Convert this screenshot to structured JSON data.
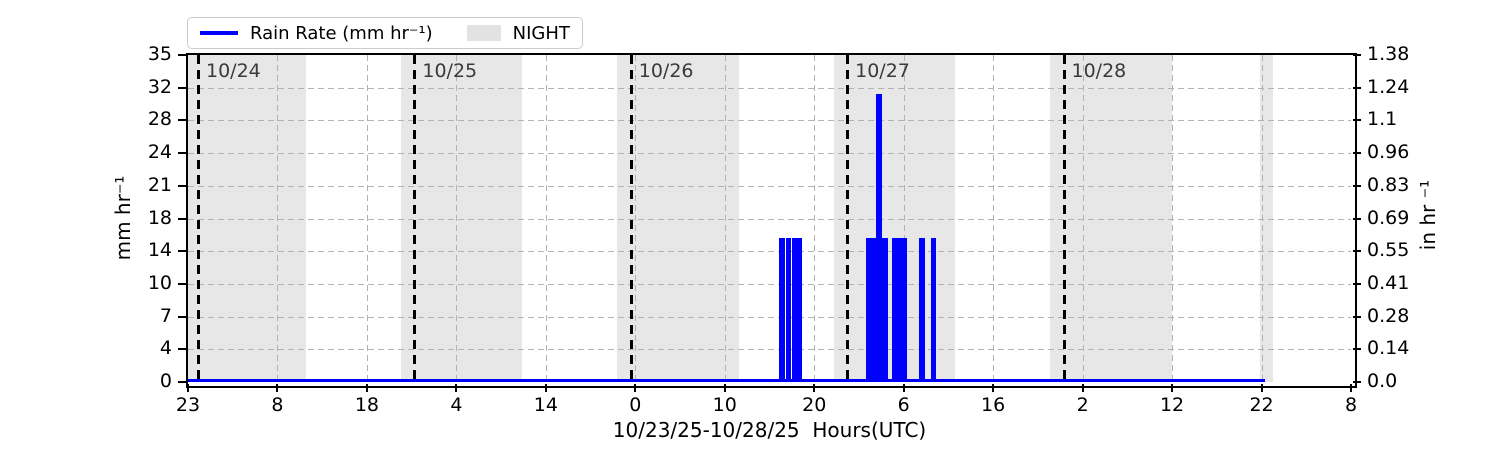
{
  "chart_data": {
    "type": "bar",
    "title": "",
    "xlabel": "10/23/25-10/28/25  Hours(UTC)",
    "ylabel_left": "mm hr⁻¹",
    "ylabel_right": "in hr ⁻¹",
    "x_axis": {
      "description": "hours since 10/23/25 23:00 UTC",
      "range_hours": [
        0,
        129
      ],
      "tick_labels": [
        "23",
        "8",
        "18",
        "4",
        "14",
        "0",
        "10",
        "20",
        "6",
        "16",
        "2",
        "12",
        "22",
        "8"
      ]
    },
    "y_axis_left": {
      "label": "mm hr⁻¹",
      "range": [
        0,
        35
      ],
      "tick_labels_bottom_to_top": [
        "0",
        "4",
        "7",
        "10",
        "14",
        "18",
        "21",
        "24",
        "28",
        "32",
        "35"
      ]
    },
    "y_axis_right": {
      "label": "in hr ⁻¹",
      "range": [
        0.0,
        1.38
      ],
      "tick_labels_bottom_to_top": [
        "0.0",
        "0.14",
        "0.28",
        "0.41",
        "0.55",
        "0.69",
        "0.83",
        "0.96",
        "1.1",
        "1.24",
        "1.38"
      ]
    },
    "day_lines": [
      {
        "hour": 1,
        "label": "10/24"
      },
      {
        "hour": 25,
        "label": "10/25"
      },
      {
        "hour": 49,
        "label": "10/26"
      },
      {
        "hour": 73,
        "label": "10/27"
      },
      {
        "hour": 97,
        "label": "10/28"
      }
    ],
    "night_bands_hours": [
      [
        0,
        13.1
      ],
      [
        23.6,
        37.1
      ],
      [
        47.6,
        61.1
      ],
      [
        71.6,
        85.1
      ],
      [
        95.6,
        109.1
      ],
      [
        118.9,
        120.4
      ]
    ],
    "rain_line_zero_span_hours": [
      0,
      119.5
    ],
    "bars": [
      {
        "start_hour": 65.6,
        "end_hour": 66.2,
        "value_mm_hr": 15.4
      },
      {
        "start_hour": 66.3,
        "end_hour": 66.9,
        "value_mm_hr": 15.4
      },
      {
        "start_hour": 67.0,
        "end_hour": 67.5,
        "value_mm_hr": 15.4
      },
      {
        "start_hour": 67.6,
        "end_hour": 68.1,
        "value_mm_hr": 15.4
      },
      {
        "start_hour": 75.2,
        "end_hour": 77.7,
        "value_mm_hr": 15.4
      },
      {
        "start_hour": 76.3,
        "end_hour": 77.0,
        "value_mm_hr": 30.8
      },
      {
        "start_hour": 78.1,
        "end_hour": 79.7,
        "value_mm_hr": 15.4
      },
      {
        "start_hour": 81.1,
        "end_hour": 81.7,
        "value_mm_hr": 15.4
      },
      {
        "start_hour": 82.4,
        "end_hour": 83.0,
        "value_mm_hr": 15.4
      }
    ],
    "legend": {
      "line_label": "Rain Rate (mm hr⁻¹)",
      "patch_label": "NIGHT"
    },
    "colors": {
      "bar": "#0000ff",
      "rain_line": "#0000ff",
      "night_band": "#e7e7e7",
      "legend_patch": "#e2e2e2",
      "grid": "#b3b3b3",
      "day_line": "#000000",
      "day_label_text": "#3a3a3a",
      "spine": "#000000"
    },
    "grid": "both-axes, dashed"
  }
}
